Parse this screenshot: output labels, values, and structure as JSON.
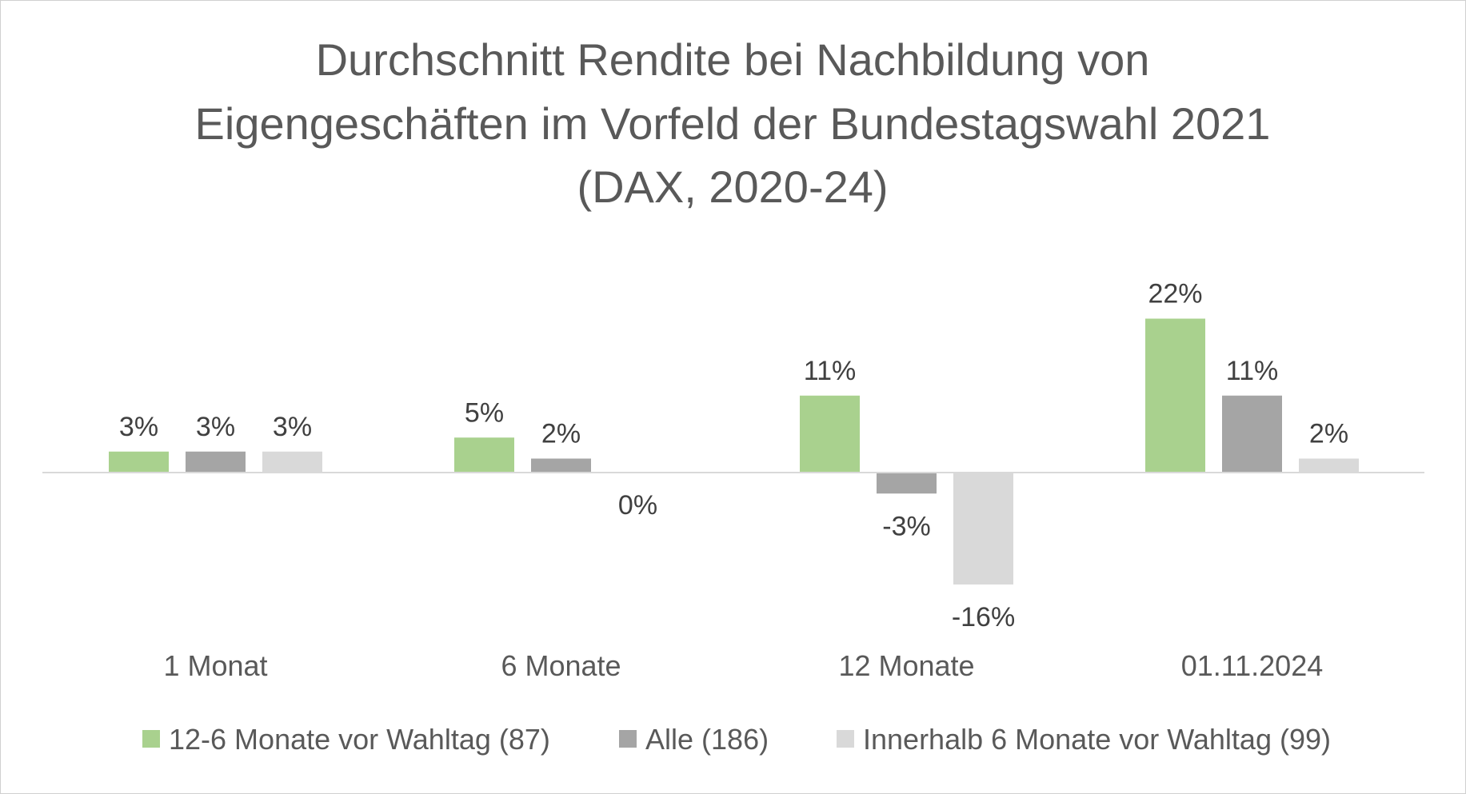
{
  "chart_data": {
    "type": "bar",
    "title_lines": [
      "Durchschnitt Rendite bei Nachbildung von",
      "Eigengeschäften im Vorfeld der Bundestagswahl 2021",
      "(DAX, 2020-24)"
    ],
    "title": "Durchschnitt Rendite bei Nachbildung von Eigengeschäften im Vorfeld der Bundestagswahl 2021 (DAX, 2020-24)",
    "xlabel": "",
    "ylabel": "",
    "categories": [
      "1 Monat",
      "6 Monate",
      "12 Monate",
      "01.11.2024"
    ],
    "ylim": [
      -20,
      25
    ],
    "grid": false,
    "legend_position": "bottom",
    "series": [
      {
        "name": "12-6 Monate vor Wahltag (87)",
        "color": "#A9D18E",
        "values": [
          3,
          5,
          11,
          22
        ],
        "labels": [
          "3%",
          "5%",
          "11%",
          "22%"
        ]
      },
      {
        "name": "Alle (186)",
        "color": "#A5A5A5",
        "values": [
          3,
          2,
          -3,
          11
        ],
        "labels": [
          "3%",
          "2%",
          "-3%",
          "11%"
        ]
      },
      {
        "name": "Innerhalb 6 Monate vor Wahltag (99)",
        "color": "#D9D9D9",
        "values": [
          3,
          0,
          -16,
          2
        ],
        "labels": [
          "3%",
          "0%",
          "-16%",
          "2%"
        ]
      }
    ]
  },
  "colors": {
    "title": "#595959",
    "axis_line": "#D9D9D9",
    "data_label": "#404040",
    "category_label": "#595959"
  }
}
